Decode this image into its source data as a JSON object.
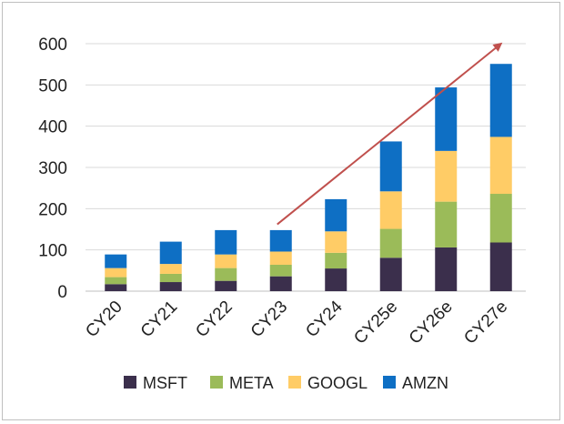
{
  "chart_data": {
    "type": "bar",
    "stacked": true,
    "title": "",
    "xlabel": "",
    "ylabel": "",
    "ylim": [
      0,
      600
    ],
    "yticks": [
      0,
      100,
      200,
      300,
      400,
      500,
      600
    ],
    "categories": [
      "CY20",
      "CY21",
      "CY22",
      "CY23",
      "CY24",
      "CY25e",
      "CY26e",
      "CY27e"
    ],
    "series": [
      {
        "name": "MSFT",
        "color": "#3b2f4c",
        "values": [
          17,
          22,
          25,
          36,
          55,
          81,
          106,
          118
        ]
      },
      {
        "name": "META",
        "color": "#9bbb59",
        "values": [
          17,
          20,
          31,
          28,
          38,
          70,
          111,
          118
        ]
      },
      {
        "name": "GOOGL",
        "color": "#ffcc66",
        "values": [
          22,
          24,
          33,
          32,
          52,
          91,
          123,
          138
        ]
      },
      {
        "name": "AMZN",
        "color": "#0e6fc4",
        "values": [
          33,
          54,
          59,
          52,
          78,
          121,
          154,
          177
        ]
      }
    ],
    "grid": true,
    "legend_position": "bottom",
    "annotation": {
      "type": "arrow",
      "color": "#c0504d",
      "from": {
        "category": "CY23",
        "value": 162
      },
      "to": {
        "category": "CY27e",
        "value": 600
      }
    }
  }
}
